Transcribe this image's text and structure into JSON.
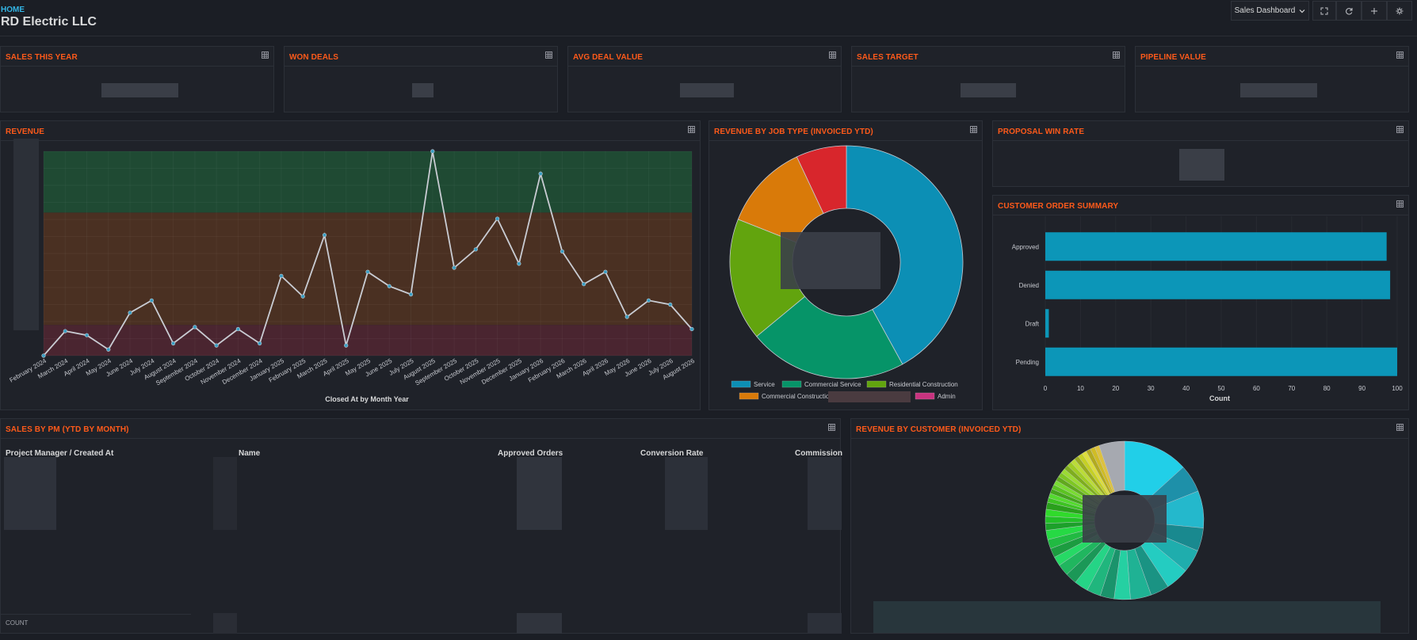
{
  "header": {
    "breadcrumb": "HOME",
    "title": "RD Electric LLC",
    "dashboard_picker": "Sales Dashboard"
  },
  "icons": {
    "dashboard_chevron": "chevron-down-icon",
    "fullscreen": "fullscreen-icon",
    "refresh": "refresh-icon",
    "add": "plus-icon",
    "settings": "gear-icon",
    "panel_menu": "table-icon"
  },
  "kpis": [
    {
      "title": "SALES THIS YEAR"
    },
    {
      "title": "WON DEALS"
    },
    {
      "title": "AVG DEAL VALUE"
    },
    {
      "title": "SALES TARGET"
    },
    {
      "title": "PIPELINE VALUE"
    }
  ],
  "panels": {
    "revenue": "REVENUE",
    "job_type": "REVENUE BY JOB TYPE (INVOICED YTD)",
    "win_rate": "PROPOSAL WIN RATE",
    "order_summary": "CUSTOMER ORDER SUMMARY",
    "sales_by_pm": "SALES BY PM (YTD BY MONTH)",
    "by_customer": "REVENUE BY CUSTOMER (INVOICED YTD)"
  },
  "colors": {
    "accent_title": "#ff5a1a",
    "line": "#c9ccd3",
    "band_green": "#1f4a33",
    "band_orange": "#4a3022",
    "band_red": "#4a2530",
    "bar": "#0c96b8"
  },
  "table": {
    "columns": [
      "Project Manager / Created At",
      "Name",
      "Approved Orders",
      "Conversion Rate",
      "Commission"
    ],
    "footer": "COUNT"
  },
  "chart_data": [
    {
      "type": "line",
      "xlabel": "Closed At by Month Year",
      "x": [
        "February 2024",
        "March 2024",
        "April 2024",
        "May 2024",
        "June 2024",
        "July 2024",
        "August 2024",
        "September 2024",
        "October 2024",
        "November 2024",
        "December 2024",
        "January 2025",
        "February 2025",
        "March 2025",
        "April 2025",
        "May 2025",
        "June 2025",
        "July 2025",
        "August 2025",
        "September 2025",
        "October 2025",
        "November 2025",
        "December 2025",
        "January 2026",
        "February 2026",
        "March 2026",
        "April 2026",
        "May 2026",
        "June 2026",
        "July 2026",
        "August 2026"
      ],
      "values": [
        0.0,
        0.12,
        0.1,
        0.03,
        0.21,
        0.27,
        0.06,
        0.14,
        0.05,
        0.13,
        0.06,
        0.39,
        0.29,
        0.59,
        0.05,
        0.41,
        0.34,
        0.3,
        1.0,
        0.43,
        0.52,
        0.67,
        0.45,
        0.89,
        0.51,
        0.35,
        0.41,
        0.19,
        0.27,
        0.25,
        0.13
      ],
      "bands": [
        {
          "from": 0.7,
          "to": 1.0,
          "color": "#1f4a33"
        },
        {
          "from": 0.15,
          "to": 0.7,
          "color": "#4a3022"
        },
        {
          "from": 0.0,
          "to": 0.15,
          "color": "#4a2530"
        }
      ],
      "ylim": [
        0,
        1
      ],
      "grid": true
    },
    {
      "type": "pie",
      "style": "donut",
      "labels": [
        "Service",
        "Commercial Service",
        "Residential Construction",
        "Commercial Construction",
        "Admin"
      ],
      "values": [
        0.42,
        0.22,
        0.17,
        0.12,
        0.07
      ],
      "colors": [
        "#0c8fb5",
        "#069468",
        "#62a40e",
        "#d97a09",
        "#d8262c"
      ],
      "legend_colors": [
        "#0c8fb5",
        "#069468",
        "#62a40e",
        "#d97a09",
        "#c8337f"
      ],
      "legend": "bottom"
    },
    {
      "type": "bar",
      "orientation": "horizontal",
      "categories": [
        "Approved",
        "Denied",
        "Draft",
        "Pending"
      ],
      "values": [
        97,
        98,
        1,
        100
      ],
      "xlabel": "Count",
      "xlim": [
        0,
        100
      ],
      "xticks": [
        0,
        10,
        20,
        30,
        40,
        50,
        60,
        70,
        80,
        90,
        100
      ]
    },
    {
      "type": "pie",
      "style": "donut",
      "slices": [
        0.14,
        0.06,
        0.08,
        0.05,
        0.05,
        0.05,
        0.04,
        0.045,
        0.035,
        0.03,
        0.03,
        0.03,
        0.025,
        0.025,
        0.02,
        0.02,
        0.02,
        0.02,
        0.015,
        0.015,
        0.015,
        0.015,
        0.01,
        0.01,
        0.01,
        0.01,
        0.01,
        0.01,
        0.01,
        0.01,
        0.01,
        0.01,
        0.01,
        0.01,
        0.01,
        0.01,
        0.01,
        0.01,
        0.01,
        0.055
      ],
      "legend": "bottom"
    }
  ]
}
